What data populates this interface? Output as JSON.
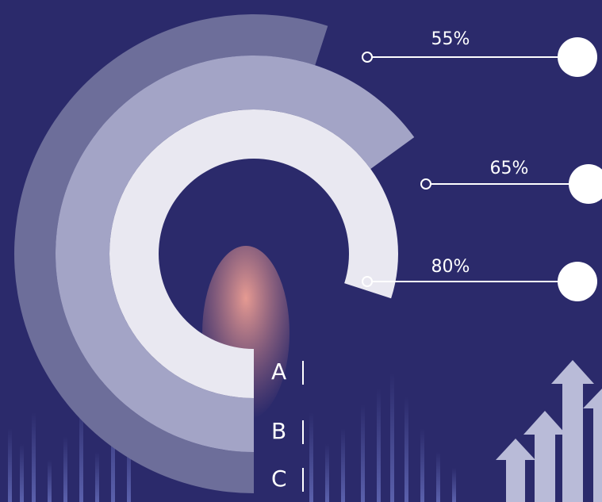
{
  "chart_data": {
    "type": "radial-bar",
    "categories": [
      "A",
      "B",
      "C"
    ],
    "values": [
      80,
      65,
      55
    ],
    "value_labels": [
      "80%",
      "65%",
      "55%"
    ],
    "colors": [
      "#e9e8f1",
      "#a3a4c6",
      "#6d6e9a"
    ]
  }
}
